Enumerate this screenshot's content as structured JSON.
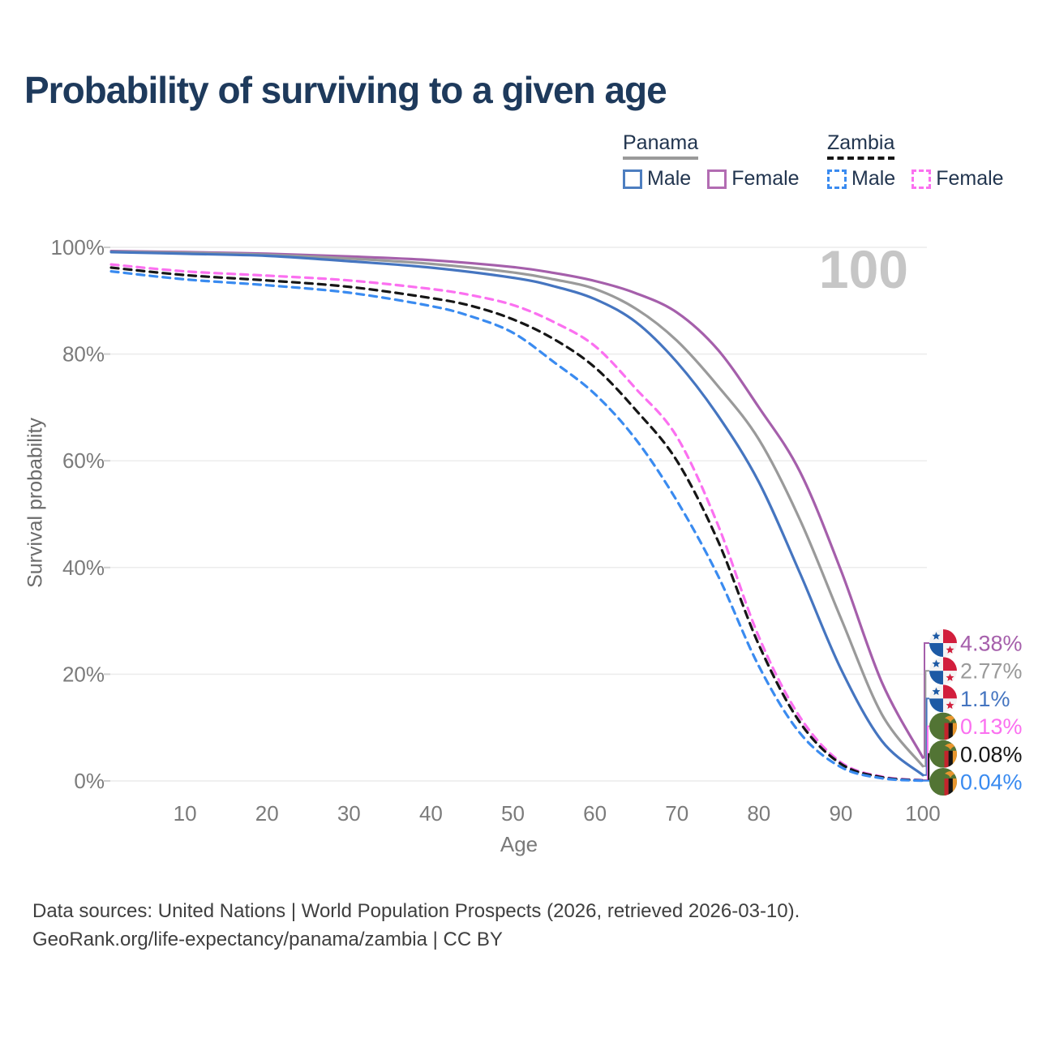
{
  "title": "Probability of surviving to a given age",
  "hover_age_label": "100",
  "legend": {
    "groups": [
      {
        "label": "Panama",
        "line_style": "solid",
        "underline_color": "#9a9a9a",
        "items": [
          {
            "label": "Male",
            "color": "#4d7ec0"
          },
          {
            "label": "Female",
            "color": "#b26cb2"
          }
        ]
      },
      {
        "label": "Zambia",
        "line_style": "dashed",
        "underline_color": "#161616",
        "items": [
          {
            "label": "Male",
            "color": "#3a8bf0"
          },
          {
            "label": "Female",
            "color": "#fb70f0"
          }
        ]
      }
    ]
  },
  "chart_data": {
    "type": "line",
    "title": "Probability of surviving to a given age",
    "xlabel": "Age",
    "ylabel": "Survival probability",
    "xlim": [
      0,
      100
    ],
    "ylim": [
      0,
      100
    ],
    "grid": "horizontal",
    "legend_position": "top-right",
    "x_ticks": [
      10,
      20,
      30,
      40,
      50,
      60,
      70,
      80,
      90,
      100
    ],
    "y_ticks": [
      {
        "value": 0,
        "label": "0%"
      },
      {
        "value": 20,
        "label": "20%"
      },
      {
        "value": 40,
        "label": "40%"
      },
      {
        "value": 60,
        "label": "60%"
      },
      {
        "value": 80,
        "label": "80%"
      },
      {
        "value": 100,
        "label": "100%"
      }
    ],
    "series": [
      {
        "name": "Panama Female",
        "country": "Panama",
        "flag": "panama",
        "color": "#a55fab",
        "dash": false,
        "end_label": "4.38%",
        "end_value": 4.38,
        "points": [
          [
            1,
            99.3
          ],
          [
            10,
            99.1
          ],
          [
            20,
            98.8
          ],
          [
            30,
            98.3
          ],
          [
            40,
            97.6
          ],
          [
            50,
            96.3
          ],
          [
            55,
            95.2
          ],
          [
            60,
            93.7
          ],
          [
            65,
            91.4
          ],
          [
            70,
            87.8
          ],
          [
            75,
            80.8
          ],
          [
            80,
            70.0
          ],
          [
            85,
            58.0
          ],
          [
            90,
            39.5
          ],
          [
            95,
            18.5
          ],
          [
            100,
            4.38
          ]
        ]
      },
      {
        "name": "Panama",
        "country": "Panama",
        "flag": "panama",
        "color": "#9a9a9a",
        "dash": false,
        "end_label": "2.77%",
        "end_value": 2.77,
        "points": [
          [
            1,
            99.2
          ],
          [
            10,
            99.0
          ],
          [
            20,
            98.6
          ],
          [
            30,
            97.9
          ],
          [
            40,
            96.9
          ],
          [
            50,
            95.3
          ],
          [
            55,
            94.0
          ],
          [
            60,
            92.2
          ],
          [
            65,
            88.5
          ],
          [
            70,
            82.5
          ],
          [
            75,
            74.0
          ],
          [
            80,
            64.0
          ],
          [
            85,
            49.0
          ],
          [
            90,
            30.5
          ],
          [
            95,
            12.5
          ],
          [
            100,
            2.77
          ]
        ]
      },
      {
        "name": "Panama Male",
        "country": "Panama",
        "flag": "panama",
        "color": "#4575c0",
        "dash": false,
        "end_label": "1.1%",
        "end_value": 1.1,
        "points": [
          [
            1,
            99.1
          ],
          [
            10,
            98.8
          ],
          [
            20,
            98.4
          ],
          [
            30,
            97.4
          ],
          [
            40,
            96.2
          ],
          [
            50,
            94.3
          ],
          [
            55,
            92.7
          ],
          [
            60,
            90.3
          ],
          [
            65,
            86.0
          ],
          [
            70,
            78.5
          ],
          [
            75,
            68.5
          ],
          [
            80,
            56.0
          ],
          [
            85,
            39.0
          ],
          [
            90,
            21.0
          ],
          [
            95,
            7.5
          ],
          [
            100,
            1.1
          ]
        ]
      },
      {
        "name": "Zambia Female",
        "country": "Zambia",
        "flag": "zambia",
        "color": "#fb70f0",
        "dash": true,
        "end_label": "0.13%",
        "end_value": 0.13,
        "points": [
          [
            1,
            96.8
          ],
          [
            10,
            95.5
          ],
          [
            20,
            94.7
          ],
          [
            30,
            93.8
          ],
          [
            40,
            92.2
          ],
          [
            45,
            91.0
          ],
          [
            50,
            89.2
          ],
          [
            55,
            86.0
          ],
          [
            60,
            81.5
          ],
          [
            65,
            73.5
          ],
          [
            70,
            64.5
          ],
          [
            75,
            48.0
          ],
          [
            80,
            27.0
          ],
          [
            85,
            12.0
          ],
          [
            90,
            3.5
          ],
          [
            95,
            0.8
          ],
          [
            100,
            0.13
          ]
        ]
      },
      {
        "name": "Zambia",
        "country": "Zambia",
        "flag": "zambia",
        "color": "#161616",
        "dash": true,
        "end_label": "0.08%",
        "end_value": 0.08,
        "points": [
          [
            1,
            96.2
          ],
          [
            10,
            94.8
          ],
          [
            20,
            93.8
          ],
          [
            30,
            92.6
          ],
          [
            40,
            90.5
          ],
          [
            45,
            89.0
          ],
          [
            50,
            86.5
          ],
          [
            55,
            82.8
          ],
          [
            60,
            77.5
          ],
          [
            65,
            69.5
          ],
          [
            70,
            60.0
          ],
          [
            75,
            45.0
          ],
          [
            80,
            25.5
          ],
          [
            85,
            11.0
          ],
          [
            90,
            3.2
          ],
          [
            95,
            0.7
          ],
          [
            100,
            0.08
          ]
        ]
      },
      {
        "name": "Zambia Male",
        "country": "Zambia",
        "flag": "zambia",
        "color": "#3a8bf0",
        "dash": true,
        "end_label": "0.04%",
        "end_value": 0.04,
        "points": [
          [
            1,
            95.5
          ],
          [
            10,
            94.0
          ],
          [
            20,
            92.9
          ],
          [
            30,
            91.5
          ],
          [
            40,
            89.0
          ],
          [
            45,
            87.0
          ],
          [
            50,
            84.0
          ],
          [
            55,
            78.5
          ],
          [
            60,
            72.5
          ],
          [
            65,
            64.0
          ],
          [
            70,
            52.5
          ],
          [
            75,
            38.5
          ],
          [
            80,
            21.5
          ],
          [
            85,
            9.0
          ],
          [
            90,
            2.6
          ],
          [
            95,
            0.5
          ],
          [
            100,
            0.04
          ]
        ]
      }
    ]
  },
  "footer": {
    "line1": "Data sources: United Nations | World Population Prospects (2026, retrieved 2026-03-10).",
    "line2": "GeoRank.org/life-expectancy/panama/zambia | CC BY"
  }
}
